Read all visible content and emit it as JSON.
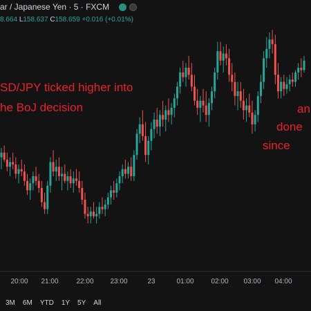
{
  "header": {
    "title": "ar / Japanese Yen · 5 · FXCM",
    "ohlc": {
      "h_label": "",
      "h_value": "8.664",
      "l_label": "L",
      "l_value": "158.637",
      "c_label": "C",
      "c_value": "158.659",
      "change": "+0.016 (+0.01%)"
    }
  },
  "annotations": {
    "left_line1": "SD/JPY ticked higher into",
    "left_line2": "he BoJ decision",
    "right_line1": "an",
    "right_line2": "done",
    "right_line3": "since"
  },
  "range_buttons": [
    "3M",
    "6M",
    "YTD",
    "1Y",
    "5Y",
    "All"
  ],
  "colors": {
    "up": "#26a69a",
    "down": "#ef5350",
    "annotation": "#e8212a",
    "background": "#131313"
  },
  "chart_data": {
    "type": "candlestick",
    "x_ticks": [
      "20:00",
      "21:00",
      "22:00",
      "23:00",
      "23",
      "01:00",
      "02:00",
      "03:00",
      "04:00"
    ],
    "series": [
      {
        "values": [
          [
            158.0,
            158.08,
            157.9,
            158.04
          ],
          [
            158.04,
            158.1,
            157.96,
            157.98
          ],
          [
            157.98,
            158.04,
            157.88,
            157.92
          ],
          [
            157.92,
            158.0,
            157.84,
            157.96
          ],
          [
            157.96,
            158.04,
            157.9,
            157.94
          ],
          [
            157.94,
            158.0,
            157.82,
            157.86
          ],
          [
            157.86,
            157.94,
            157.78,
            157.9
          ],
          [
            157.9,
            157.98,
            157.84,
            157.88
          ],
          [
            157.88,
            157.94,
            157.76,
            157.8
          ],
          [
            157.8,
            157.86,
            157.68,
            157.72
          ],
          [
            157.72,
            157.82,
            157.64,
            157.78
          ],
          [
            157.78,
            157.88,
            157.72,
            157.84
          ],
          [
            157.84,
            157.92,
            157.76,
            157.8
          ],
          [
            157.8,
            157.86,
            157.7,
            157.74
          ],
          [
            157.74,
            157.8,
            157.58,
            157.62
          ],
          [
            157.62,
            157.7,
            157.52,
            157.56
          ],
          [
            157.56,
            157.8,
            157.52,
            157.76
          ],
          [
            157.76,
            158.0,
            157.7,
            157.96
          ],
          [
            157.96,
            158.06,
            157.84,
            157.88
          ],
          [
            157.88,
            157.98,
            157.8,
            157.92
          ],
          [
            157.92,
            158.0,
            157.8,
            157.84
          ],
          [
            157.84,
            157.92,
            157.72,
            157.86
          ],
          [
            157.86,
            157.94,
            157.78,
            157.8
          ],
          [
            157.8,
            157.88,
            157.72,
            157.84
          ],
          [
            157.84,
            157.9,
            157.74,
            157.78
          ],
          [
            157.78,
            157.88,
            157.7,
            157.82
          ],
          [
            157.82,
            157.9,
            157.76,
            157.8
          ],
          [
            157.8,
            157.88,
            157.7,
            157.74
          ],
          [
            157.74,
            157.8,
            157.6,
            157.64
          ],
          [
            157.64,
            157.7,
            157.48,
            157.52
          ],
          [
            157.52,
            157.58,
            157.44,
            157.5
          ],
          [
            157.5,
            157.58,
            157.44,
            157.54
          ],
          [
            157.54,
            157.62,
            157.48,
            157.5
          ],
          [
            157.5,
            157.58,
            157.44,
            157.52
          ],
          [
            157.52,
            157.62,
            157.48,
            157.58
          ],
          [
            157.58,
            157.66,
            157.52,
            157.56
          ],
          [
            157.56,
            157.64,
            157.5,
            157.6
          ],
          [
            157.6,
            157.7,
            157.56,
            157.66
          ],
          [
            157.66,
            157.76,
            157.6,
            157.72
          ],
          [
            157.72,
            157.8,
            157.64,
            157.7
          ],
          [
            157.7,
            157.82,
            157.66,
            157.78
          ],
          [
            157.78,
            157.88,
            157.72,
            157.84
          ],
          [
            157.84,
            157.94,
            157.78,
            157.9
          ],
          [
            157.9,
            157.98,
            157.82,
            157.86
          ],
          [
            157.86,
            157.96,
            157.82,
            157.92
          ],
          [
            157.92,
            158.0,
            157.8,
            157.84
          ],
          [
            157.84,
            158.06,
            157.8,
            158.02
          ],
          [
            158.02,
            158.24,
            157.98,
            158.2
          ],
          [
            158.2,
            158.34,
            158.12,
            158.28
          ],
          [
            158.28,
            158.4,
            158.14,
            158.18
          ],
          [
            158.18,
            158.3,
            157.96,
            158.02
          ],
          [
            158.02,
            158.18,
            157.94,
            158.14
          ],
          [
            158.14,
            158.3,
            158.06,
            158.24
          ],
          [
            158.24,
            158.38,
            158.16,
            158.32
          ],
          [
            158.32,
            158.42,
            158.2,
            158.26
          ],
          [
            158.26,
            158.4,
            158.18,
            158.36
          ],
          [
            158.36,
            158.48,
            158.26,
            158.32
          ],
          [
            158.32,
            158.44,
            158.22,
            158.4
          ],
          [
            158.4,
            158.5,
            158.3,
            158.36
          ],
          [
            158.36,
            158.46,
            158.28,
            158.42
          ],
          [
            158.42,
            158.54,
            158.34,
            158.5
          ],
          [
            158.5,
            158.64,
            158.44,
            158.6
          ],
          [
            158.6,
            158.76,
            158.54,
            158.72
          ],
          [
            158.72,
            158.82,
            158.64,
            158.68
          ],
          [
            158.68,
            158.8,
            158.6,
            158.76
          ],
          [
            158.76,
            158.86,
            158.66,
            158.7
          ],
          [
            158.7,
            158.8,
            158.56,
            158.6
          ],
          [
            158.6,
            158.7,
            158.44,
            158.48
          ],
          [
            158.48,
            158.58,
            158.36,
            158.42
          ],
          [
            158.42,
            158.52,
            158.3,
            158.48
          ],
          [
            158.48,
            158.58,
            158.38,
            158.44
          ],
          [
            158.44,
            158.56,
            158.3,
            158.36
          ],
          [
            158.36,
            158.5,
            158.26,
            158.46
          ],
          [
            158.46,
            158.6,
            158.4,
            158.56
          ],
          [
            158.56,
            158.76,
            158.5,
            158.72
          ],
          [
            158.72,
            158.98,
            158.66,
            158.9
          ],
          [
            158.9,
            158.98,
            158.78,
            158.82
          ],
          [
            158.82,
            158.94,
            158.72,
            158.88
          ],
          [
            158.88,
            158.96,
            158.78,
            158.84
          ],
          [
            158.84,
            158.92,
            158.64,
            158.7
          ],
          [
            158.7,
            158.8,
            158.56,
            158.64
          ],
          [
            158.64,
            158.72,
            158.44,
            158.52
          ],
          [
            158.52,
            158.64,
            158.4,
            158.56
          ],
          [
            158.56,
            158.64,
            158.42,
            158.48
          ],
          [
            158.48,
            158.58,
            158.32,
            158.4
          ],
          [
            158.4,
            158.5,
            158.3,
            158.44
          ],
          [
            158.44,
            158.54,
            158.34,
            158.38
          ],
          [
            158.38,
            158.48,
            158.2,
            158.28
          ],
          [
            158.28,
            158.4,
            158.22,
            158.36
          ],
          [
            158.36,
            158.56,
            158.3,
            158.52
          ],
          [
            158.52,
            158.7,
            158.46,
            158.64
          ],
          [
            158.64,
            158.9,
            158.58,
            158.84
          ],
          [
            158.84,
            159.02,
            158.76,
            158.92
          ],
          [
            158.92,
            159.06,
            158.84,
            159.0
          ],
          [
            159.0,
            159.08,
            158.88,
            158.96
          ],
          [
            158.96,
            159.04,
            158.62,
            158.7
          ],
          [
            158.7,
            158.8,
            158.5,
            158.56
          ],
          [
            158.56,
            158.68,
            158.5,
            158.64
          ],
          [
            158.64,
            158.7,
            158.52,
            158.58
          ],
          [
            158.58,
            158.68,
            158.54,
            158.62
          ],
          [
            158.62,
            158.7,
            158.56,
            158.66
          ],
          [
            158.66,
            158.72,
            158.6,
            158.64
          ],
          [
            158.64,
            158.74,
            158.6,
            158.72
          ],
          [
            158.72,
            158.8,
            158.66,
            158.76
          ],
          [
            158.76,
            158.84,
            158.68,
            158.74
          ],
          [
            158.74,
            158.86,
            158.72,
            158.82
          ]
        ]
      }
    ]
  }
}
